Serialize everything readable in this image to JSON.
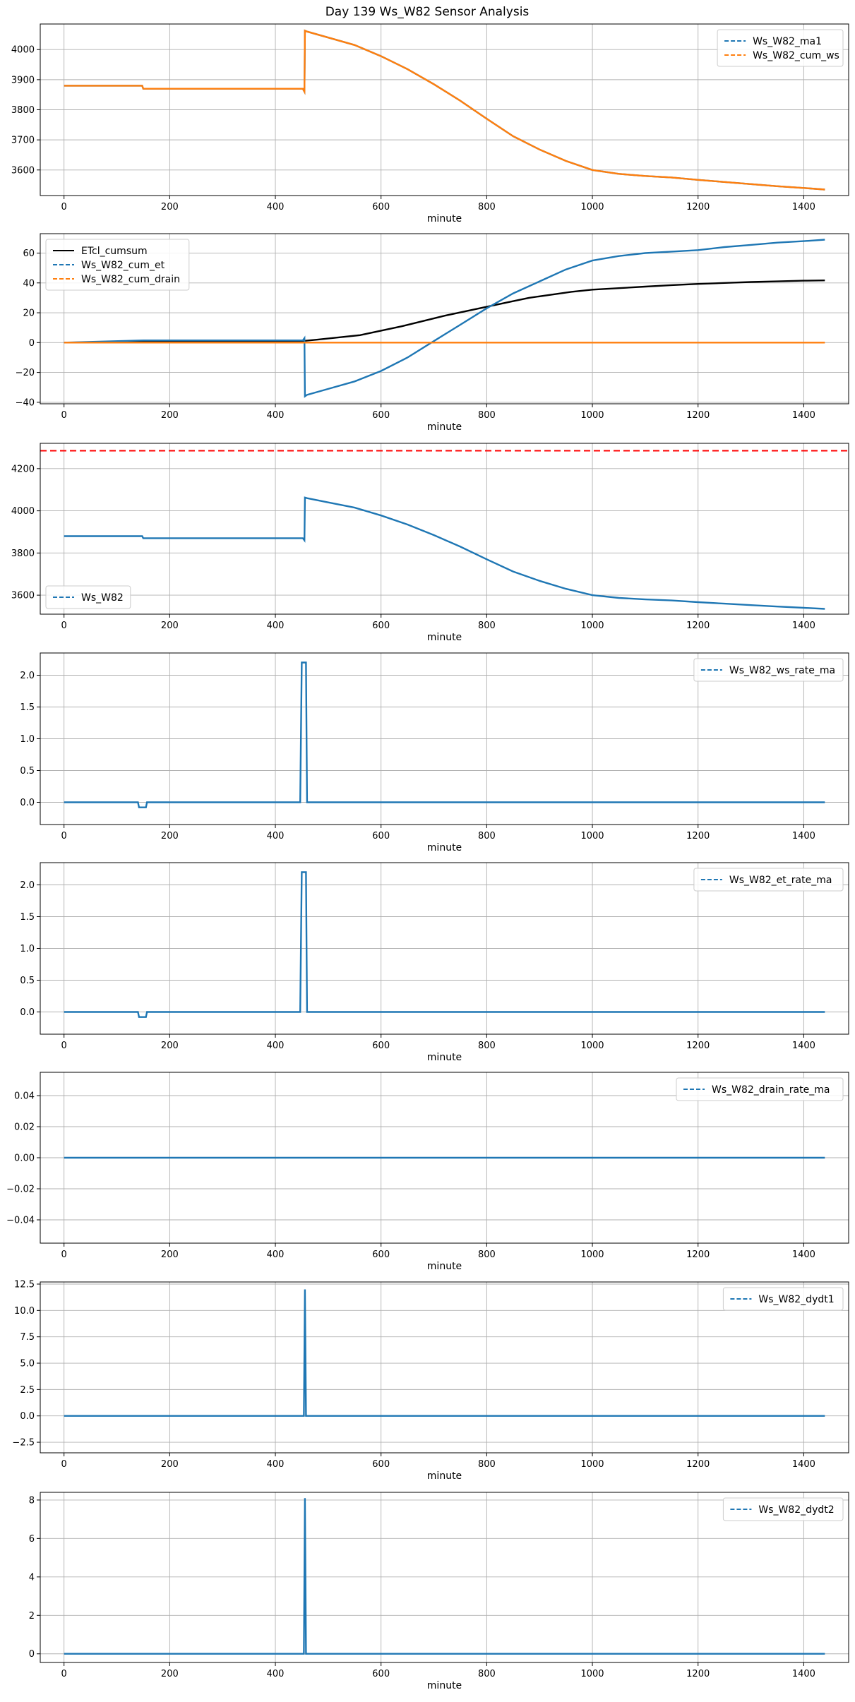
{
  "figure": {
    "title": "Day 139 Ws_W82 Sensor Analysis",
    "colors": {
      "blue": "#1f77b4",
      "orange": "#ff7f0e",
      "black": "#000000",
      "red": "#ff0000",
      "grid": "#b0b0b0"
    }
  },
  "chart_data": [
    {
      "type": "line",
      "xlabel": "minute",
      "xlim": [
        -45,
        1485
      ],
      "ylim": [
        3515,
        4085
      ],
      "xticks": [
        0,
        200,
        400,
        600,
        800,
        1000,
        1200,
        1400
      ],
      "yticks": [
        3600,
        3700,
        3800,
        3900,
        4000
      ],
      "ytick_labels": [
        "3600",
        "3700",
        "3800",
        "3900",
        "4000"
      ],
      "grid": true,
      "legend": "upper right",
      "series": [
        {
          "name": "Ws_W82_ma1",
          "color": "#1f77b4",
          "dashed": true,
          "x": [
            0,
            148,
            150,
            452,
            455,
            456,
            460,
            500,
            550,
            600,
            650,
            700,
            750,
            800,
            850,
            900,
            950,
            1000,
            1050,
            1100,
            1150,
            1200,
            1250,
            1300,
            1350,
            1400,
            1440
          ],
          "y": [
            3880,
            3880,
            3870,
            3870,
            3860,
            4063,
            4060,
            4040,
            4015,
            3978,
            3935,
            3885,
            3830,
            3770,
            3712,
            3668,
            3630,
            3600,
            3587,
            3580,
            3575,
            3567,
            3560,
            3553,
            3546,
            3540,
            3535
          ]
        },
        {
          "name": "Ws_W82_cum_ws",
          "color": "#ff7f0e",
          "dashed": true,
          "x": [
            0,
            148,
            150,
            452,
            455,
            456,
            460,
            500,
            550,
            600,
            650,
            700,
            750,
            800,
            850,
            900,
            950,
            1000,
            1050,
            1100,
            1150,
            1200,
            1250,
            1300,
            1350,
            1400,
            1440
          ],
          "y": [
            3880,
            3880,
            3870,
            3870,
            3860,
            4063,
            4060,
            4040,
            4015,
            3978,
            3935,
            3885,
            3830,
            3770,
            3712,
            3668,
            3630,
            3600,
            3587,
            3580,
            3575,
            3567,
            3560,
            3553,
            3546,
            3540,
            3535
          ]
        }
      ]
    },
    {
      "type": "line",
      "xlabel": "minute",
      "xlim": [
        -45,
        1485
      ],
      "ylim": [
        -41,
        73
      ],
      "xticks": [
        0,
        200,
        400,
        600,
        800,
        1000,
        1200,
        1400
      ],
      "yticks": [
        -40,
        -20,
        0,
        20,
        40,
        60
      ],
      "ytick_labels": [
        "−40",
        "−20",
        "0",
        "20",
        "40",
        "60"
      ],
      "grid": true,
      "legend": "upper left",
      "series": [
        {
          "name": "ETcl_cumsum",
          "color": "#000000",
          "dashed": false,
          "x": [
            0,
            150,
            450,
            480,
            520,
            560,
            600,
            640,
            680,
            720,
            760,
            800,
            840,
            880,
            920,
            960,
            1000,
            1050,
            1100,
            1150,
            1200,
            1250,
            1300,
            1350,
            1400,
            1440
          ],
          "y": [
            0,
            0.5,
            1,
            2,
            3.5,
            5,
            8,
            11,
            14.5,
            18,
            21,
            24,
            27,
            30,
            32,
            34,
            35.5,
            36.5,
            37.5,
            38.5,
            39.3,
            40,
            40.6,
            41,
            41.5,
            41.7
          ]
        },
        {
          "name": "Ws_W82_cum_et",
          "color": "#1f77b4",
          "dashed": true,
          "x": [
            0,
            150,
            452,
            455,
            456,
            460,
            500,
            550,
            600,
            650,
            700,
            750,
            800,
            850,
            900,
            950,
            1000,
            1050,
            1100,
            1150,
            1200,
            1250,
            1300,
            1350,
            1400,
            1440
          ],
          "y": [
            0,
            1.5,
            1.5,
            3,
            -36,
            -35,
            -31,
            -26,
            -19,
            -10,
            1,
            12,
            23,
            33,
            41,
            49,
            55,
            58,
            60,
            61,
            62,
            64,
            65.5,
            67,
            68,
            69
          ]
        },
        {
          "name": "Ws_W82_cum_drain",
          "color": "#ff7f0e",
          "dashed": true,
          "x": [
            0,
            1440
          ],
          "y": [
            0,
            0
          ]
        }
      ]
    },
    {
      "type": "line",
      "xlabel": "minute",
      "xlim": [
        -45,
        1485
      ],
      "ylim": [
        3510,
        4320
      ],
      "xticks": [
        0,
        200,
        400,
        600,
        800,
        1000,
        1200,
        1400
      ],
      "yticks": [
        3600,
        3800,
        4000,
        4200
      ],
      "ytick_labels": [
        "3600",
        "3800",
        "4000",
        "4200"
      ],
      "grid": true,
      "legend": "lower left",
      "hline": {
        "y": 4285,
        "color": "#ff0000",
        "dashed": true
      },
      "series": [
        {
          "name": "Ws_W82",
          "color": "#1f77b4",
          "dashed": true,
          "x": [
            0,
            148,
            150,
            452,
            455,
            456,
            460,
            500,
            550,
            600,
            650,
            700,
            750,
            800,
            850,
            900,
            950,
            1000,
            1050,
            1100,
            1150,
            1200,
            1250,
            1300,
            1350,
            1400,
            1440
          ],
          "y": [
            3880,
            3880,
            3870,
            3870,
            3860,
            4063,
            4060,
            4040,
            4015,
            3978,
            3935,
            3885,
            3830,
            3770,
            3712,
            3668,
            3630,
            3600,
            3587,
            3580,
            3575,
            3567,
            3560,
            3553,
            3546,
            3540,
            3535
          ]
        }
      ]
    },
    {
      "type": "line",
      "xlabel": "minute",
      "xlim": [
        -45,
        1485
      ],
      "ylim": [
        -0.35,
        2.35
      ],
      "xticks": [
        0,
        200,
        400,
        600,
        800,
        1000,
        1200,
        1400
      ],
      "yticks": [
        0.0,
        0.5,
        1.0,
        1.5,
        2.0
      ],
      "ytick_labels": [
        "0.0",
        "0.5",
        "1.0",
        "1.5",
        "2.0"
      ],
      "grid": true,
      "legend": "upper right",
      "series": [
        {
          "name": "Ws_W82_ws_rate_ma",
          "color": "#1f77b4",
          "dashed": true,
          "x": [
            0,
            140,
            142,
            155,
            157,
            447,
            450,
            452,
            458,
            460,
            470,
            1440
          ],
          "y": [
            0,
            0,
            -0.08,
            -0.08,
            0,
            0,
            2.2,
            2.2,
            2.2,
            0,
            0,
            0
          ]
        }
      ]
    },
    {
      "type": "line",
      "xlabel": "minute",
      "xlim": [
        -45,
        1485
      ],
      "ylim": [
        -0.35,
        2.35
      ],
      "xticks": [
        0,
        200,
        400,
        600,
        800,
        1000,
        1200,
        1400
      ],
      "yticks": [
        0.0,
        0.5,
        1.0,
        1.5,
        2.0
      ],
      "ytick_labels": [
        "0.0",
        "0.5",
        "1.0",
        "1.5",
        "2.0"
      ],
      "grid": true,
      "legend": "upper right",
      "series": [
        {
          "name": "Ws_W82_et_rate_ma",
          "color": "#1f77b4",
          "dashed": true,
          "x": [
            0,
            140,
            142,
            155,
            157,
            447,
            450,
            452,
            458,
            460,
            470,
            1440
          ],
          "y": [
            0,
            0,
            -0.08,
            -0.08,
            0,
            0,
            2.2,
            2.2,
            2.2,
            0,
            0,
            0
          ]
        }
      ]
    },
    {
      "type": "line",
      "xlabel": "minute",
      "xlim": [
        -45,
        1485
      ],
      "ylim": [
        -0.055,
        0.055
      ],
      "xticks": [
        0,
        200,
        400,
        600,
        800,
        1000,
        1200,
        1400
      ],
      "yticks": [
        -0.04,
        -0.02,
        0.0,
        0.02,
        0.04
      ],
      "ytick_labels": [
        "−0.04",
        "−0.02",
        "0.00",
        "0.02",
        "0.04"
      ],
      "grid": true,
      "legend": "upper right",
      "series": [
        {
          "name": "Ws_W82_drain_rate_ma",
          "color": "#1f77b4",
          "dashed": true,
          "x": [
            0,
            1440
          ],
          "y": [
            0,
            0
          ]
        }
      ]
    },
    {
      "type": "line",
      "xlabel": "minute",
      "xlim": [
        -45,
        1485
      ],
      "ylim": [
        -3.5,
        12.7
      ],
      "xticks": [
        0,
        200,
        400,
        600,
        800,
        1000,
        1200,
        1400
      ],
      "yticks": [
        -2.5,
        0.0,
        2.5,
        5.0,
        7.5,
        10.0,
        12.5
      ],
      "ytick_labels": [
        "−2.5",
        "0.0",
        "2.5",
        "5.0",
        "7.5",
        "10.0",
        "12.5"
      ],
      "grid": true,
      "legend": "upper right",
      "series": [
        {
          "name": "Ws_W82_dydt1",
          "color": "#1f77b4",
          "dashed": true,
          "x": [
            0,
            454,
            456,
            458,
            1440
          ],
          "y": [
            0,
            0,
            12,
            0,
            0
          ]
        }
      ]
    },
    {
      "type": "line",
      "xlabel": "minute",
      "xlim": [
        -45,
        1485
      ],
      "ylim": [
        -0.45,
        8.4
      ],
      "xticks": [
        0,
        200,
        400,
        600,
        800,
        1000,
        1200,
        1400
      ],
      "yticks": [
        0,
        2,
        4,
        6,
        8
      ],
      "ytick_labels": [
        "0",
        "2",
        "4",
        "6",
        "8"
      ],
      "grid": true,
      "legend": "upper right",
      "series": [
        {
          "name": "Ws_W82_dydt2",
          "color": "#1f77b4",
          "dashed": true,
          "x": [
            0,
            454,
            456,
            458,
            1440
          ],
          "y": [
            0,
            0,
            8.1,
            0,
            0
          ]
        }
      ]
    }
  ]
}
